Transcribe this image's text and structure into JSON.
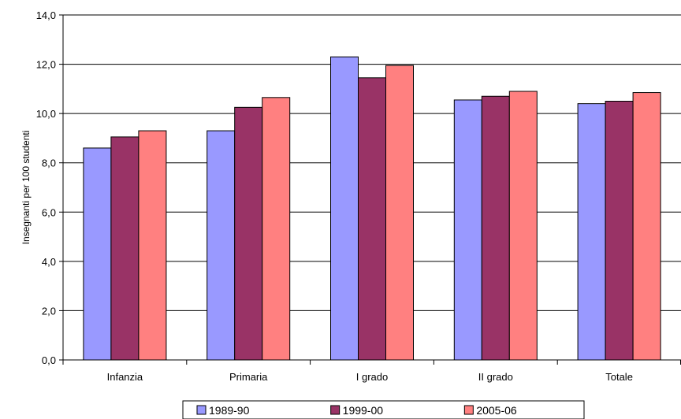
{
  "chart_data": {
    "type": "bar",
    "title": "",
    "xlabel": "",
    "ylabel": "Insegnanti per 100 studenti",
    "ylim": [
      0,
      14
    ],
    "yticks": [
      "0,0",
      "2,0",
      "4,0",
      "6,0",
      "8,0",
      "10,0",
      "12,0",
      "14,0"
    ],
    "grid": true,
    "legend_position": "bottom",
    "categories": [
      "Infanzia",
      "Primaria",
      "I grado",
      "II grado",
      "Totale"
    ],
    "series": [
      {
        "name": "1989-90",
        "color": "#9999ff",
        "values": [
          8.6,
          9.3,
          12.3,
          10.55,
          10.4
        ]
      },
      {
        "name": "1999-00",
        "color": "#993366",
        "values": [
          9.05,
          10.25,
          11.45,
          10.7,
          10.5
        ]
      },
      {
        "name": "2005-06",
        "color": "#ff8080",
        "values": [
          9.3,
          10.65,
          11.95,
          10.9,
          10.85
        ]
      }
    ]
  }
}
